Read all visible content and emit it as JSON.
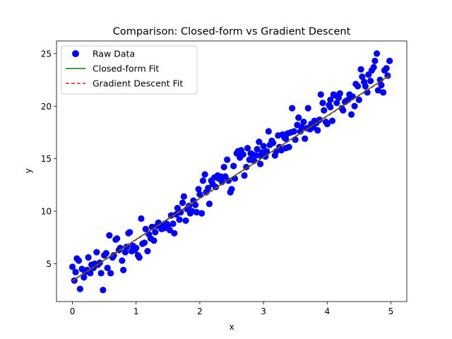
{
  "chart_data": {
    "type": "scatter",
    "title": "Comparison: Closed-form vs Gradient Descent",
    "xlabel": "x",
    "ylabel": "y",
    "xlim": [
      -0.25,
      5.25
    ],
    "ylim": [
      1.4,
      26.2
    ],
    "xticks": [
      0,
      1,
      2,
      3,
      4,
      5
    ],
    "xtick_labels": [
      "0",
      "1",
      "2",
      "3",
      "4",
      "5"
    ],
    "yticks": [
      5,
      10,
      15,
      20,
      25
    ],
    "ytick_labels": [
      "5",
      "10",
      "15",
      "20",
      "25"
    ],
    "grid": false,
    "legend_position": "top-left",
    "colors": {
      "raw": "#0000ff",
      "closed": "#008000",
      "gd": "#d62728"
    },
    "series": [
      {
        "name": "Raw Data",
        "kind": "scatter",
        "points": [
          [
            0.0,
            4.7
          ],
          [
            0.03,
            3.4
          ],
          [
            0.05,
            4.2
          ],
          [
            0.07,
            5.5
          ],
          [
            0.1,
            5.3
          ],
          [
            0.12,
            2.6
          ],
          [
            0.15,
            4.5
          ],
          [
            0.18,
            3.7
          ],
          [
            0.2,
            4.2
          ],
          [
            0.23,
            4.4
          ],
          [
            0.25,
            5.6
          ],
          [
            0.28,
            4.1
          ],
          [
            0.3,
            4.9
          ],
          [
            0.33,
            4.6
          ],
          [
            0.35,
            5.0
          ],
          [
            0.38,
            6.1
          ],
          [
            0.4,
            4.9
          ],
          [
            0.43,
            5.1
          ],
          [
            0.45,
            4.1
          ],
          [
            0.48,
            2.5
          ],
          [
            0.5,
            5.8
          ],
          [
            0.53,
            6.0
          ],
          [
            0.55,
            4.6
          ],
          [
            0.58,
            7.7
          ],
          [
            0.6,
            4.1
          ],
          [
            0.63,
            5.6
          ],
          [
            0.65,
            5.8
          ],
          [
            0.68,
            7.3
          ],
          [
            0.7,
            7.4
          ],
          [
            0.73,
            6.3
          ],
          [
            0.75,
            6.5
          ],
          [
            0.78,
            5.3
          ],
          [
            0.8,
            4.4
          ],
          [
            0.83,
            6.1
          ],
          [
            0.85,
            6.6
          ],
          [
            0.88,
            7.9
          ],
          [
            0.9,
            8.0
          ],
          [
            0.93,
            6.2
          ],
          [
            0.95,
            6.7
          ],
          [
            0.98,
            6.3
          ],
          [
            1.0,
            6.5
          ],
          [
            1.03,
            5.8
          ],
          [
            1.05,
            5.6
          ],
          [
            1.08,
            9.3
          ],
          [
            1.1,
            6.9
          ],
          [
            1.13,
            7.0
          ],
          [
            1.15,
            8.3
          ],
          [
            1.18,
            6.2
          ],
          [
            1.2,
            7.8
          ],
          [
            1.23,
            7.4
          ],
          [
            1.25,
            8.5
          ],
          [
            1.28,
            7.2
          ],
          [
            1.3,
            8.0
          ],
          [
            1.33,
            8.6
          ],
          [
            1.35,
            8.9
          ],
          [
            1.38,
            8.6
          ],
          [
            1.4,
            8.3
          ],
          [
            1.43,
            8.7
          ],
          [
            1.45,
            8.4
          ],
          [
            1.48,
            8.8
          ],
          [
            1.5,
            8.5
          ],
          [
            1.53,
            8.2
          ],
          [
            1.55,
            9.6
          ],
          [
            1.58,
            8.8
          ],
          [
            1.6,
            7.9
          ],
          [
            1.63,
            9.7
          ],
          [
            1.65,
            10.3
          ],
          [
            1.68,
            9.2
          ],
          [
            1.7,
            9.9
          ],
          [
            1.73,
            10.8
          ],
          [
            1.75,
            11.4
          ],
          [
            1.78,
            9.1
          ],
          [
            1.8,
            10.2
          ],
          [
            1.83,
            10.5
          ],
          [
            1.85,
            9.8
          ],
          [
            1.88,
            10.0
          ],
          [
            1.9,
            11.0
          ],
          [
            1.93,
            10.6
          ],
          [
            1.95,
            9.9
          ],
          [
            1.98,
            12.1
          ],
          [
            2.0,
            11.6
          ],
          [
            2.03,
            9.8
          ],
          [
            2.05,
            12.9
          ],
          [
            2.08,
            13.5
          ],
          [
            2.1,
            11.8
          ],
          [
            2.13,
            12.2
          ],
          [
            2.15,
            10.7
          ],
          [
            2.18,
            12.9
          ],
          [
            2.2,
            12.6
          ],
          [
            2.23,
            13.2
          ],
          [
            2.25,
            12.3
          ],
          [
            2.28,
            13.4
          ],
          [
            2.3,
            13.1
          ],
          [
            2.33,
            13.3
          ],
          [
            2.35,
            12.8
          ],
          [
            2.38,
            14.2
          ],
          [
            2.4,
            13.3
          ],
          [
            2.43,
            14.9
          ],
          [
            2.45,
            12.9
          ],
          [
            2.48,
            11.8
          ],
          [
            2.5,
            12.1
          ],
          [
            2.53,
            14.3
          ],
          [
            2.55,
            13.1
          ],
          [
            2.58,
            15.5
          ],
          [
            2.6,
            15.7
          ],
          [
            2.63,
            15.1
          ],
          [
            2.65,
            15.8
          ],
          [
            2.68,
            15.4
          ],
          [
            2.7,
            13.4
          ],
          [
            2.73,
            14.2
          ],
          [
            2.75,
            16.0
          ],
          [
            2.78,
            14.9
          ],
          [
            2.8,
            15.5
          ],
          [
            2.83,
            15.4
          ],
          [
            2.85,
            14.8
          ],
          [
            2.88,
            15.3
          ],
          [
            2.9,
            15.9
          ],
          [
            2.93,
            16.6
          ],
          [
            2.95,
            15.3
          ],
          [
            2.98,
            15.6
          ],
          [
            3.0,
            16.2
          ],
          [
            3.03,
            15.2
          ],
          [
            3.05,
            15.7
          ],
          [
            3.08,
            17.6
          ],
          [
            3.1,
            16.3
          ],
          [
            3.13,
            16.7
          ],
          [
            3.15,
            16.5
          ],
          [
            3.18,
            15.3
          ],
          [
            3.2,
            15.7
          ],
          [
            3.23,
            17.2
          ],
          [
            3.25,
            16.1
          ],
          [
            3.28,
            15.8
          ],
          [
            3.3,
            17.3
          ],
          [
            3.33,
            17.0
          ],
          [
            3.35,
            16.9
          ],
          [
            3.38,
            17.4
          ],
          [
            3.4,
            16.1
          ],
          [
            3.43,
            17.5
          ],
          [
            3.45,
            19.8
          ],
          [
            3.48,
            17.6
          ],
          [
            3.5,
            16.8
          ],
          [
            3.53,
            18.2
          ],
          [
            3.55,
            18.9
          ],
          [
            3.58,
            17.6
          ],
          [
            3.6,
            18.0
          ],
          [
            3.63,
            18.5
          ],
          [
            3.65,
            16.9
          ],
          [
            3.68,
            17.9
          ],
          [
            3.7,
            19.8
          ],
          [
            3.73,
            17.8
          ],
          [
            3.75,
            18.3
          ],
          [
            3.78,
            18.0
          ],
          [
            3.8,
            18.6
          ],
          [
            3.83,
            18.4
          ],
          [
            3.85,
            17.7
          ],
          [
            3.88,
            18.7
          ],
          [
            3.9,
            21.1
          ],
          [
            3.93,
            20.3
          ],
          [
            3.95,
            19.6
          ],
          [
            3.98,
            18.5
          ],
          [
            4.0,
            18.3
          ],
          [
            4.03,
            20.1
          ],
          [
            4.05,
            20.6
          ],
          [
            4.08,
            18.6
          ],
          [
            4.1,
            21.1
          ],
          [
            4.13,
            21.0
          ],
          [
            4.15,
            20.3
          ],
          [
            4.18,
            20.8
          ],
          [
            4.2,
            21.2
          ],
          [
            4.23,
            19.8
          ],
          [
            4.25,
            19.6
          ],
          [
            4.28,
            20.4
          ],
          [
            4.3,
            20.5
          ],
          [
            4.33,
            20.6
          ],
          [
            4.35,
            21.1
          ],
          [
            4.38,
            19.2
          ],
          [
            4.4,
            20.9
          ],
          [
            4.43,
            20.0
          ],
          [
            4.45,
            22.1
          ],
          [
            4.48,
            21.9
          ],
          [
            4.5,
            20.6
          ],
          [
            4.53,
            23.5
          ],
          [
            4.55,
            22.8
          ],
          [
            4.58,
            22.3
          ],
          [
            4.6,
            21.9
          ],
          [
            4.63,
            21.3
          ],
          [
            4.65,
            23.0
          ],
          [
            4.68,
            22.4
          ],
          [
            4.7,
            23.4
          ],
          [
            4.73,
            23.7
          ],
          [
            4.75,
            24.3
          ],
          [
            4.78,
            25.0
          ],
          [
            4.8,
            21.5
          ],
          [
            4.83,
            22.5
          ],
          [
            4.85,
            22.0
          ],
          [
            4.88,
            21.3
          ],
          [
            4.9,
            23.4
          ],
          [
            4.93,
            23.6
          ],
          [
            4.95,
            22.9
          ],
          [
            4.98,
            24.3
          ],
          [
            1.45,
            8.8
          ],
          [
            2.95,
            14.5
          ],
          [
            3.35,
            16.0
          ],
          [
            4.05,
            19.9
          ]
        ]
      },
      {
        "name": "Closed-form Fit",
        "kind": "line",
        "points": [
          [
            0,
            3.4
          ],
          [
            5,
            23.0
          ]
        ]
      },
      {
        "name": "Gradient Descent Fit",
        "kind": "dashed-line",
        "points": [
          [
            0,
            3.35
          ],
          [
            5,
            22.95
          ]
        ]
      }
    ]
  }
}
